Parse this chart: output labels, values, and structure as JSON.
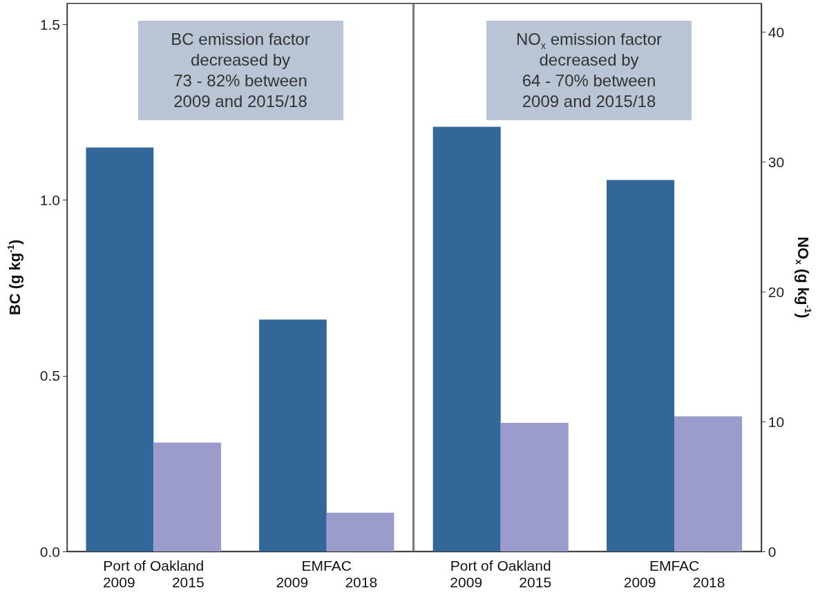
{
  "chart_data": [
    {
      "type": "bar",
      "categories": [
        "Port of Oakland\n2009 2015",
        "EMFAC\n2009 2018"
      ],
      "series": [
        {
          "color": "#336699",
          "values": [
            1.15,
            0.66
          ]
        },
        {
          "color": "#9b9bcc",
          "values": [
            0.31,
            0.11
          ]
        }
      ],
      "ylabel": "BC (g kg$^{-1}$)",
      "ylim": [
        0,
        1.56
      ],
      "yticks": [
        {
          "value": 0,
          "label": "0.0"
        },
        {
          "value": 0.5,
          "label": "0.5"
        },
        {
          "value": 1,
          "label": "1.0"
        },
        {
          "value": 1.5,
          "label": "1.5"
        }
      ],
      "annotations": [
        "BC emission factor\ndecreased by\n73 - 82% between\n2009 and 2015/18"
      ]
    },
    {
      "type": "bar",
      "categories": [
        "Port of Oakland\n2009 2015",
        "EMFAC\n2009 2018"
      ],
      "series": [
        {
          "color": "#336699",
          "values": [
            32.7,
            28.6
          ]
        },
        {
          "color": "#9b9bcc",
          "values": [
            9.9,
            10.4
          ]
        }
      ],
      "ylabel": "NO$_{x}$ (g kg$^{-1}$)",
      "ylim": [
        0,
        42.2
      ],
      "yticks": [
        0,
        10,
        20,
        30,
        40
      ],
      "annotations": [
        "NO$_{x}$ emission factor\ndecreased by\n64 - 70% between\n2009 and 2015/18"
      ]
    }
  ]
}
